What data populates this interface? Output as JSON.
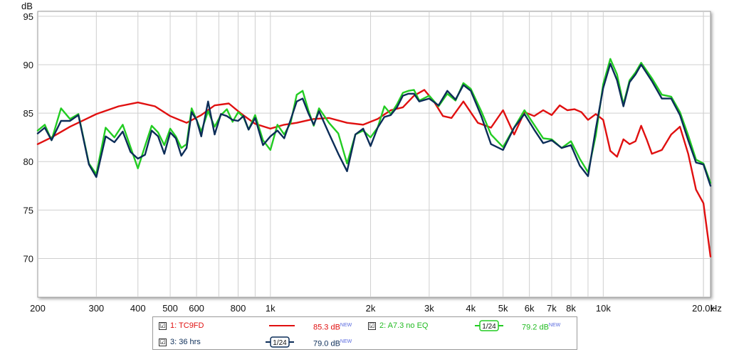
{
  "chart_data": {
    "type": "line",
    "title": "",
    "ylabel": "dB",
    "xlabel": "Hz",
    "xscale": "log",
    "xlim": [
      200,
      21000
    ],
    "ylim": [
      66,
      95.5
    ],
    "grid": true,
    "y_ticks": [
      70,
      75,
      80,
      85,
      90,
      95
    ],
    "x_ticks": [
      {
        "v": 200,
        "label": "200"
      },
      {
        "v": 300,
        "label": "300"
      },
      {
        "v": 400,
        "label": "400"
      },
      {
        "v": 500,
        "label": "500"
      },
      {
        "v": 600,
        "label": "600"
      },
      {
        "v": 800,
        "label": "800"
      },
      {
        "v": 1000,
        "label": "1k"
      },
      {
        "v": 2000,
        "label": "2k"
      },
      {
        "v": 3000,
        "label": "3k"
      },
      {
        "v": 4000,
        "label": "4k"
      },
      {
        "v": 5000,
        "label": "5k"
      },
      {
        "v": 6000,
        "label": "6k"
      },
      {
        "v": 7000,
        "label": "7k"
      },
      {
        "v": 8000,
        "label": "8k"
      },
      {
        "v": 10000,
        "label": "10k"
      },
      {
        "v": 20000,
        "label": "20.0k"
      }
    ],
    "x_unit_label": "Hz",
    "series": [
      {
        "name": "1: TC9FD",
        "color": "#e01010",
        "x": [
          200,
          220,
          250,
          300,
          350,
          400,
          450,
          500,
          560,
          620,
          680,
          750,
          820,
          900,
          1000,
          1100,
          1200,
          1350,
          1500,
          1700,
          1900,
          2100,
          2300,
          2500,
          2700,
          2900,
          3100,
          3300,
          3500,
          3800,
          4200,
          4600,
          5000,
          5400,
          5800,
          6200,
          6600,
          7000,
          7400,
          7800,
          8200,
          8600,
          9000,
          9500,
          10000,
          10500,
          11000,
          11500,
          12000,
          12500,
          13000,
          13500,
          14000,
          15000,
          16000,
          17000,
          18000,
          19000,
          20000,
          21000
        ],
        "values": [
          81.8,
          82.5,
          83.6,
          84.9,
          85.7,
          86.1,
          85.7,
          84.7,
          84.0,
          84.8,
          85.8,
          86.0,
          84.9,
          83.9,
          83.4,
          83.8,
          84.0,
          84.4,
          84.5,
          84.0,
          83.8,
          84.4,
          85.3,
          85.6,
          86.8,
          87.4,
          86.2,
          84.7,
          84.5,
          86.2,
          84.0,
          83.5,
          85.3,
          82.8,
          85.1,
          84.7,
          85.3,
          84.8,
          85.8,
          85.3,
          85.4,
          85.1,
          84.3,
          84.9,
          84.3,
          81.1,
          80.5,
          82.3,
          81.8,
          82.1,
          83.7,
          82.3,
          80.8,
          81.2,
          82.8,
          83.6,
          80.8,
          77.1,
          75.7,
          70.2
        ]
      },
      {
        "name": "2: A7.3 no EQ",
        "color": "#22cc22",
        "x": [
          200,
          210,
          220,
          235,
          250,
          265,
          285,
          300,
          320,
          340,
          360,
          380,
          400,
          420,
          440,
          460,
          480,
          500,
          520,
          540,
          560,
          580,
          600,
          620,
          650,
          680,
          710,
          740,
          770,
          800,
          830,
          860,
          900,
          950,
          1000,
          1050,
          1100,
          1150,
          1200,
          1250,
          1300,
          1350,
          1400,
          1500,
          1600,
          1700,
          1800,
          1900,
          2000,
          2100,
          2200,
          2300,
          2400,
          2500,
          2600,
          2700,
          2800,
          3000,
          3200,
          3400,
          3600,
          3800,
          4000,
          4300,
          4600,
          5000,
          5400,
          5800,
          6200,
          6600,
          7000,
          7500,
          8000,
          8500,
          9000,
          9500,
          10000,
          10500,
          11000,
          11500,
          12000,
          12500,
          13000,
          14000,
          15000,
          16000,
          17000,
          18000,
          19000,
          20000,
          21000
        ],
        "values": [
          83.2,
          83.8,
          82.2,
          85.5,
          84.4,
          84.9,
          79.8,
          78.7,
          83.5,
          82.5,
          83.8,
          81.5,
          79.3,
          81.6,
          83.7,
          83.0,
          81.7,
          83.4,
          82.6,
          81.4,
          81.8,
          85.5,
          84.3,
          83.1,
          85.2,
          83.6,
          84.8,
          85.4,
          84.1,
          85.1,
          84.6,
          83.3,
          84.8,
          82.2,
          81.2,
          83.8,
          82.8,
          84.0,
          86.9,
          87.3,
          85.3,
          83.7,
          85.5,
          84.0,
          82.9,
          79.8,
          82.8,
          83.2,
          82.5,
          83.5,
          85.7,
          84.9,
          85.9,
          87.1,
          87.3,
          87.4,
          86.3,
          86.8,
          85.7,
          87.0,
          86.3,
          88.1,
          87.5,
          85.2,
          82.8,
          81.5,
          83.5,
          85.3,
          83.8,
          82.4,
          82.3,
          81.4,
          82.1,
          80.3,
          78.9,
          82.7,
          88.0,
          90.6,
          89.0,
          85.9,
          88.4,
          89.2,
          90.2,
          88.6,
          86.9,
          86.7,
          85.1,
          82.7,
          80.2,
          79.8,
          77.8
        ]
      },
      {
        "name": "3: 36 hrs",
        "color": "#0c2d58",
        "x": [
          200,
          210,
          220,
          235,
          250,
          265,
          285,
          300,
          320,
          340,
          360,
          380,
          400,
          420,
          440,
          460,
          480,
          500,
          520,
          540,
          560,
          580,
          600,
          620,
          650,
          680,
          710,
          740,
          770,
          800,
          830,
          860,
          900,
          950,
          1000,
          1050,
          1100,
          1150,
          1200,
          1250,
          1300,
          1350,
          1400,
          1500,
          1600,
          1700,
          1800,
          1900,
          2000,
          2100,
          2200,
          2300,
          2400,
          2500,
          2600,
          2700,
          2800,
          3000,
          3200,
          3400,
          3600,
          3800,
          4000,
          4300,
          4600,
          5000,
          5400,
          5800,
          6200,
          6600,
          7000,
          7500,
          8000,
          8500,
          9000,
          9500,
          10000,
          10500,
          11000,
          11500,
          12000,
          12500,
          13000,
          14000,
          15000,
          16000,
          17000,
          18000,
          19000,
          20000,
          21000
        ],
        "values": [
          82.9,
          83.5,
          82.2,
          84.2,
          84.2,
          84.8,
          79.7,
          78.4,
          82.6,
          82.0,
          83.1,
          81.0,
          80.3,
          80.7,
          83.2,
          82.6,
          80.8,
          83.0,
          82.4,
          80.6,
          81.4,
          85.1,
          84.3,
          82.6,
          86.2,
          82.8,
          84.9,
          84.7,
          84.3,
          84.2,
          84.7,
          83.3,
          84.5,
          81.7,
          82.6,
          83.2,
          82.4,
          84.3,
          86.2,
          86.5,
          85.0,
          83.8,
          85.2,
          82.9,
          80.8,
          79.0,
          82.8,
          83.4,
          81.6,
          83.5,
          84.6,
          84.8,
          85.6,
          86.8,
          87.0,
          87.0,
          86.2,
          86.5,
          85.8,
          87.3,
          86.4,
          87.9,
          87.3,
          84.7,
          81.8,
          81.2,
          83.5,
          84.9,
          83.3,
          81.9,
          82.2,
          81.4,
          81.7,
          79.6,
          78.5,
          83.4,
          87.6,
          90.1,
          88.4,
          85.7,
          88.2,
          89.0,
          90.0,
          88.3,
          86.5,
          86.5,
          84.8,
          82.2,
          79.9,
          79.7,
          77.5
        ]
      }
    ],
    "legend": {
      "placement": "bottom-center",
      "entries": [
        {
          "label": "1: TC9FD",
          "value": "85.3 dB",
          "tag": "NEW",
          "color": "#e01010",
          "smoothing": "",
          "checked": true
        },
        {
          "label": "2: A7.3 no EQ",
          "value": "79.2 dB",
          "tag": "NEW",
          "color": "#22cc22",
          "smoothing": "1/24",
          "checked": true
        },
        {
          "label": "3: 36 hrs",
          "value": "79.0 dB",
          "tag": "NEW",
          "color": "#0c2d58",
          "smoothing": "1/24",
          "checked": true
        }
      ]
    }
  },
  "legend_check_glyph": "☑"
}
